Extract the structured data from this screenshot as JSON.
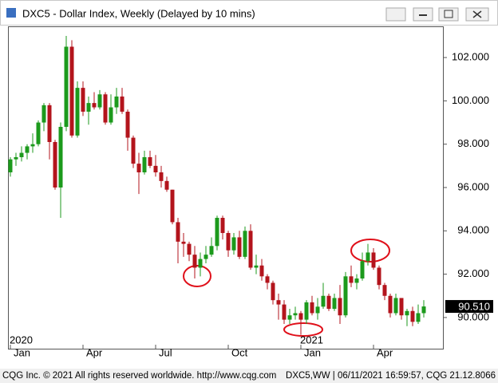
{
  "window": {
    "title": "DXC5 - Dollar Index, Weekly (Delayed by 10 mins)"
  },
  "footer": {
    "left": "CQG Inc. © 2021 All rights reserved worldwide. http://www.cqg.com",
    "right": "DXC5,WW | 06/11/2021 16:59:57, CQG 21.12.8066"
  },
  "chart_data": {
    "type": "candlestick",
    "categories": [
      "Jan",
      null,
      null,
      null,
      null,
      null,
      null,
      null,
      null,
      null,
      null,
      null,
      null,
      "Apr",
      null,
      null,
      null,
      null,
      null,
      null,
      null,
      null,
      null,
      null,
      null,
      null,
      "Jul",
      null,
      null,
      null,
      null,
      null,
      null,
      null,
      null,
      null,
      null,
      null,
      null,
      "Oct",
      null,
      null,
      null,
      null,
      null,
      null,
      null,
      null,
      null,
      null,
      null,
      null,
      "Jan",
      null,
      null,
      null,
      null,
      null,
      null,
      null,
      null,
      null,
      null,
      null,
      null,
      "Apr",
      null,
      null,
      null,
      null,
      null,
      null,
      null,
      null,
      null
    ],
    "years": [
      "2020",
      null,
      null,
      null,
      null,
      null,
      null,
      null,
      null,
      null,
      null,
      null,
      null,
      null,
      null,
      null,
      null,
      null,
      null,
      null,
      null,
      null,
      null,
      null,
      null,
      null,
      null,
      null,
      null,
      null,
      null,
      null,
      null,
      null,
      null,
      null,
      null,
      null,
      null,
      null,
      null,
      null,
      null,
      null,
      null,
      null,
      null,
      null,
      null,
      null,
      null,
      null,
      "2021",
      null,
      null,
      null,
      null,
      null,
      null,
      null,
      null,
      null,
      null,
      null,
      null,
      null,
      null,
      null,
      null,
      null,
      null,
      null,
      null,
      null,
      null
    ],
    "open": [
      96.7,
      97.3,
      97.4,
      97.6,
      97.9,
      98.0,
      99.0,
      99.8,
      98.1,
      96.0,
      98.8,
      102.5,
      98.4,
      100.6,
      99.5,
      99.9,
      99.7,
      100.3,
      99.0,
      99.7,
      100.2,
      99.5,
      98.3,
      97.1,
      96.7,
      97.4,
      97.0,
      96.7,
      96.3,
      95.9,
      94.4,
      93.5,
      93.4,
      92.9,
      92.3,
      92.7,
      92.9,
      93.3,
      94.6,
      93.9,
      93.1,
      93.7,
      92.8,
      94.0,
      92.3,
      92.4,
      91.9,
      91.6,
      90.8,
      90.6,
      89.9,
      90.1,
      90.2,
      89.9,
      90.7,
      90.2,
      90.5,
      91.0,
      90.4,
      90.9,
      90.1,
      91.9,
      91.6,
      91.8,
      92.6,
      93.0,
      92.3,
      91.5,
      91.0,
      90.2,
      90.9,
      90.1,
      90.3,
      89.8,
      90.2
    ],
    "high": [
      97.4,
      97.6,
      97.9,
      98.0,
      98.5,
      99.1,
      99.9,
      99.9,
      98.2,
      99.0,
      103.0,
      102.8,
      100.9,
      100.9,
      100.2,
      100.4,
      100.5,
      100.4,
      100.3,
      100.6,
      100.6,
      99.6,
      98.4,
      97.6,
      97.7,
      97.7,
      97.5,
      97.0,
      96.5,
      95.9,
      94.6,
      93.9,
      93.5,
      93.3,
      93.0,
      93.3,
      93.7,
      94.7,
      94.7,
      94.0,
      93.9,
      94.0,
      94.2,
      94.3,
      92.9,
      92.7,
      92.0,
      91.7,
      91.1,
      90.8,
      90.4,
      90.5,
      90.3,
      90.8,
      91.0,
      90.9,
      91.6,
      91.1,
      91.1,
      91.5,
      92.1,
      92.4,
      92.0,
      93.0,
      93.4,
      93.2,
      92.4,
      91.6,
      91.1,
      91.1,
      90.9,
      90.4,
      90.5,
      90.6,
      90.8
    ],
    "low": [
      96.5,
      97.0,
      97.2,
      97.3,
      97.6,
      97.9,
      98.6,
      97.3,
      95.9,
      94.6,
      98.6,
      98.3,
      98.3,
      99.3,
      98.9,
      99.6,
      99.6,
      98.9,
      98.9,
      99.4,
      99.4,
      97.7,
      96.9,
      95.7,
      96.6,
      96.9,
      96.5,
      96.0,
      95.8,
      94.3,
      92.5,
      92.8,
      92.6,
      91.8,
      91.9,
      92.5,
      92.8,
      93.1,
      93.6,
      92.8,
      92.9,
      92.7,
      92.7,
      92.2,
      92.0,
      91.7,
      91.3,
      90.6,
      89.9,
      89.7,
      89.7,
      89.9,
      89.2,
      89.7,
      90.1,
      89.9,
      90.4,
      90.3,
      90.3,
      89.7,
      90.0,
      91.4,
      91.3,
      91.7,
      92.4,
      92.2,
      91.3,
      90.8,
      90.0,
      90.1,
      89.9,
      89.6,
      89.6,
      89.7,
      90.0
    ],
    "close": [
      97.3,
      97.4,
      97.6,
      97.9,
      98.0,
      99.0,
      99.8,
      98.1,
      96.0,
      98.8,
      102.5,
      98.4,
      100.6,
      99.5,
      99.9,
      99.7,
      100.3,
      99.0,
      99.7,
      100.2,
      99.5,
      98.3,
      97.1,
      96.7,
      97.4,
      97.0,
      96.7,
      96.3,
      95.9,
      94.4,
      93.5,
      93.4,
      92.9,
      92.3,
      92.7,
      92.9,
      93.3,
      94.6,
      93.9,
      93.1,
      93.7,
      92.8,
      94.0,
      92.3,
      92.4,
      91.9,
      91.6,
      90.8,
      90.6,
      89.9,
      90.1,
      90.2,
      89.9,
      90.7,
      90.2,
      90.5,
      91.0,
      90.4,
      90.9,
      90.1,
      91.9,
      91.6,
      91.8,
      92.6,
      93.0,
      92.3,
      91.5,
      91.0,
      90.2,
      90.9,
      90.1,
      90.3,
      89.8,
      90.2,
      90.51
    ],
    "last_label": "90.510",
    "up_color": "#1c9a1c",
    "down_color": "#b3141c",
    "ylim": [
      88.56,
      103.44
    ],
    "yticks": [
      {
        "value": 90,
        "label": "90.000"
      },
      {
        "value": 92,
        "label": "92.000"
      },
      {
        "value": 94,
        "label": "94.000"
      },
      {
        "value": 96,
        "label": "96.000"
      },
      {
        "value": 98,
        "label": "98.000"
      },
      {
        "value": 100,
        "label": "100.000"
      },
      {
        "value": 102,
        "label": "102.000"
      }
    ],
    "grid": false
  }
}
